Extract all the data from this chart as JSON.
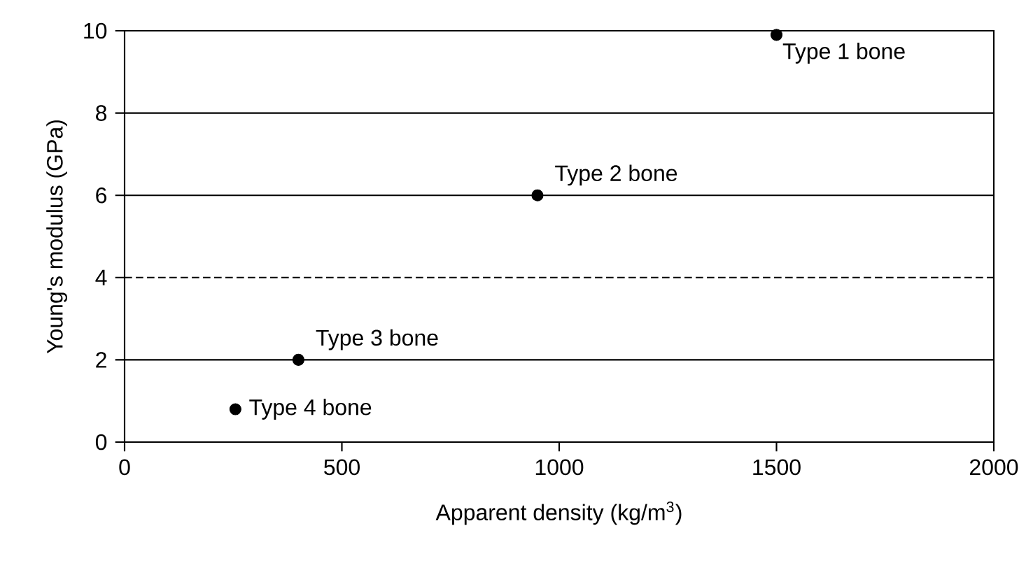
{
  "chart_data": {
    "type": "scatter",
    "xlabel": "Apparent density (kg/m$^{3}$)",
    "ylabel": "Young's modulus (GPa)",
    "x": [
      255,
      400,
      950,
      1500
    ],
    "series": [
      {
        "color": "#000000",
        "values": [
          0.8,
          2.0,
          6.0,
          9.9
        ]
      }
    ],
    "marker": "circle",
    "xlim": [
      0,
      2000
    ],
    "ylim": [
      0,
      10
    ],
    "xticks": [
      0,
      500,
      1000,
      1500,
      2000
    ],
    "yticks": [
      0,
      2,
      4,
      6,
      8,
      10
    ],
    "grid": "y",
    "ref_lines": [
      {
        "axis": "y",
        "value": 4,
        "line_style": "dashed",
        "color": "#000000"
      }
    ],
    "annotations": [
      {
        "text": "Type 1 bone",
        "x": 1500,
        "y": 9.9
      },
      {
        "text": "Type 2 bone",
        "x": 950,
        "y": 6.0
      },
      {
        "text": "Type 3 bone",
        "x": 400,
        "y": 2.0
      },
      {
        "text": "Type 4 bone",
        "x": 255,
        "y": 0.8
      }
    ]
  }
}
